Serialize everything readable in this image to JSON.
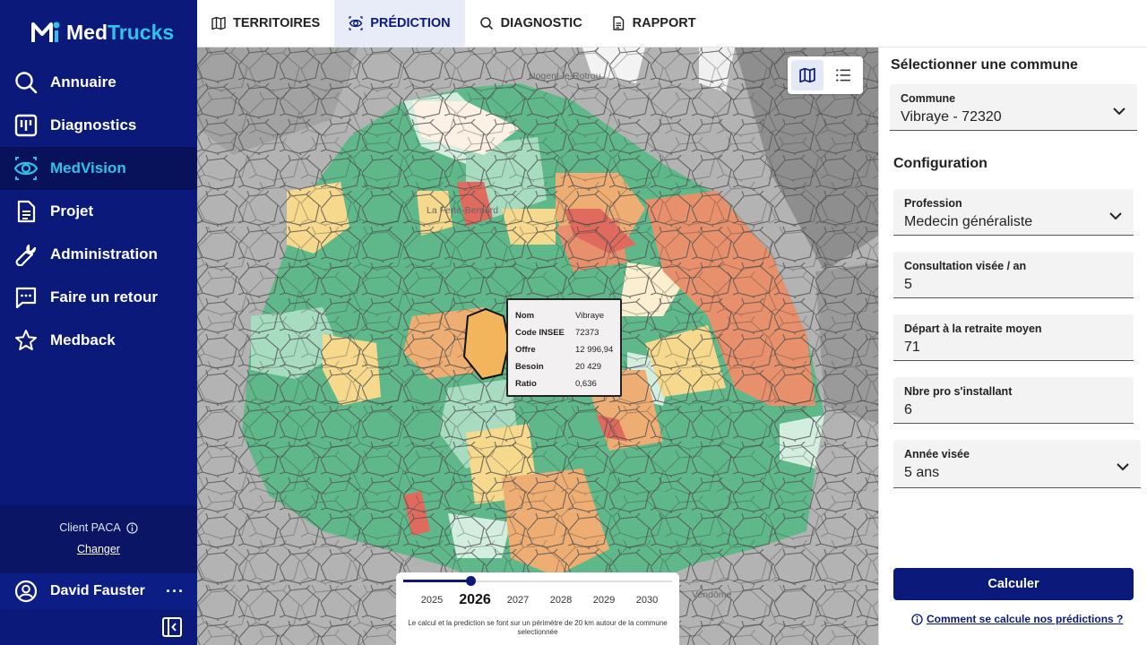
{
  "brand": {
    "part1": "Med",
    "part2": "Trucks"
  },
  "sidebar": {
    "items": [
      {
        "label": "Annuaire",
        "icon": "search-icon"
      },
      {
        "label": "Diagnostics",
        "icon": "chart-icon"
      },
      {
        "label": "MedVision",
        "icon": "eye-icon",
        "active": true
      },
      {
        "label": "Projet",
        "icon": "document-icon"
      },
      {
        "label": "Administration",
        "icon": "wrench-icon"
      },
      {
        "label": "Faire un retour",
        "icon": "chat-icon"
      },
      {
        "label": "Medback",
        "icon": "star-icon"
      }
    ],
    "client_label": "Client PACA",
    "change_label": "Changer",
    "user_name": "David Fauster",
    "user_more": "···"
  },
  "tabs": [
    {
      "label": "TERRITOIRES",
      "icon": "map-icon"
    },
    {
      "label": "PRÉDICTION",
      "icon": "eye-icon",
      "active": true
    },
    {
      "label": "DIAGNOSTIC",
      "icon": "search-icon"
    },
    {
      "label": "RAPPORT",
      "icon": "document-icon"
    }
  ],
  "map": {
    "places": [
      "Nogent-le-Rotrou",
      "La Ferté-Bernard",
      "Vendôme"
    ],
    "tooltip": {
      "rows": [
        {
          "key": "Nom",
          "value": "Vibraye"
        },
        {
          "key": "Code INSEE",
          "value": "72373"
        },
        {
          "key": "Offre",
          "value": "12 996,94"
        },
        {
          "key": "Besoin",
          "value": "20 429"
        },
        {
          "key": "Ratio",
          "value": "0,636"
        }
      ]
    },
    "timeline": {
      "years": [
        "2025",
        "2026",
        "2027",
        "2028",
        "2029",
        "2030"
      ],
      "selected": "2026",
      "note": "Le calcul et la prediction se font sur un périmètre de 20 km autour de la commune selectionnée"
    },
    "colors": {
      "green": "#5fb88a",
      "light_green": "#a8dcc0",
      "pale_green": "#d3eedf",
      "yellow": "#f6d98c",
      "orange": "#eeae73",
      "dark_orange": "#e8906b",
      "red": "#df6a5d",
      "grey": "#a6a6a6"
    }
  },
  "panel": {
    "select_title": "Sélectionner une commune",
    "commune": {
      "label": "Commune",
      "value": "Vibraye - 72320"
    },
    "config_title": "Configuration",
    "fields": [
      {
        "label": "Profession",
        "value": "Medecin généraliste",
        "dropdown": true
      },
      {
        "label": "Consultation visée / an",
        "value": "5"
      },
      {
        "label": "Départ à la retraite moyen",
        "value": "71"
      },
      {
        "label": "Nbre pro s'installant",
        "value": "6"
      },
      {
        "label": "Année visée",
        "value": "5 ans",
        "dropdown": true
      }
    ],
    "calc_label": "Calculer",
    "help_link": "Comment se calcule nos prédictions ?"
  }
}
